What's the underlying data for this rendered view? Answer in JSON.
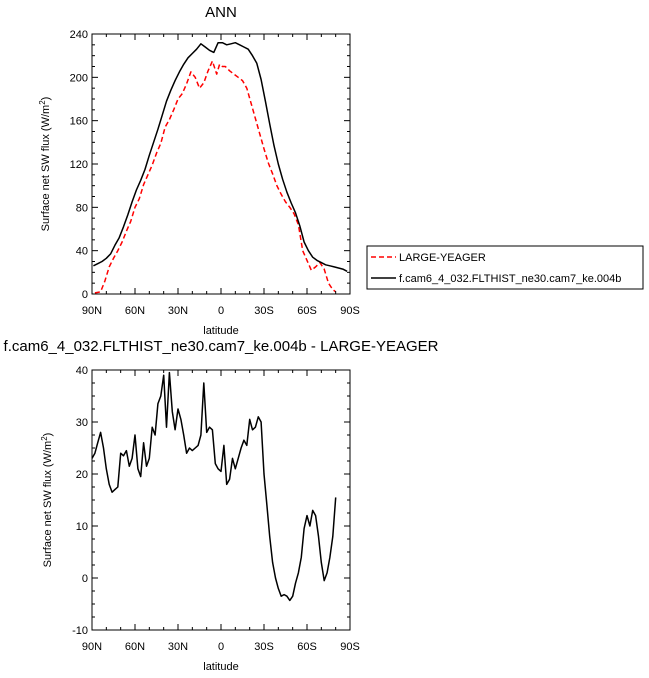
{
  "chart_data": [
    {
      "type": "line",
      "title": "ANN",
      "xlabel": "latitude",
      "ylabel": "Surface net SW flux (W/m²)",
      "ylabel_base": "Surface net SW flux (W/m",
      "ylabel_sup": "2",
      "ylabel_tail": ")",
      "xlim": [
        90,
        -90
      ],
      "ylim": [
        0,
        240
      ],
      "xticks": [
        90,
        60,
        30,
        0,
        -30,
        -60,
        -90
      ],
      "xtick_labels": [
        "90N",
        "60N",
        "30N",
        "0",
        "30S",
        "60S",
        "90S"
      ],
      "yticks": [
        0,
        40,
        80,
        120,
        160,
        200,
        240
      ],
      "ytick_labels": [
        "0",
        "40",
        "80",
        "120",
        "160",
        "200",
        "240"
      ],
      "legend_position": "outside-right",
      "series": [
        {
          "name": "LARGE-YEAGER",
          "color": "#ff0000",
          "dash": "dashed",
          "x": [
            88,
            84,
            81,
            78,
            75,
            72,
            69,
            66,
            63,
            60,
            57,
            54,
            51,
            48,
            45,
            42,
            39,
            36,
            33,
            30,
            27,
            24,
            21,
            18,
            15,
            12,
            9,
            6,
            3,
            1,
            -1,
            -3,
            -6,
            -9,
            -12,
            -15,
            -18,
            -21,
            -24,
            -27,
            -30,
            -33,
            -36,
            -39,
            -42,
            -45,
            -48,
            -51,
            -54,
            -57,
            -60,
            -63,
            -66,
            -69,
            -72,
            -75,
            -78,
            -80
          ],
          "y": [
            1,
            2,
            12,
            25,
            33,
            40,
            48,
            58,
            67,
            80,
            88,
            101,
            110,
            119,
            130,
            139,
            154,
            161,
            170,
            180,
            185,
            194,
            205,
            200,
            190,
            195,
            206,
            215,
            203,
            212,
            210,
            210,
            206,
            203,
            200,
            197,
            190,
            176,
            162,
            148,
            134,
            121,
            111,
            100,
            92,
            85,
            80,
            74,
            64,
            40,
            31,
            22,
            25,
            29,
            23,
            10,
            4,
            2
          ]
        },
        {
          "name": "f.cam6_4_032.FLTHIST_ne30.cam7_ke.004b",
          "color": "#000000",
          "dash": "solid",
          "x": [
            89,
            86,
            83,
            80,
            77,
            74,
            71,
            68,
            65,
            62,
            59,
            56,
            53,
            50,
            47,
            44,
            41,
            38,
            35,
            32,
            29,
            26,
            23,
            20,
            17,
            14,
            11,
            8,
            5,
            2,
            -1,
            -4,
            -7,
            -10,
            -13,
            -16,
            -19,
            -22,
            -25,
            -28,
            -31,
            -34,
            -37,
            -40,
            -43,
            -46,
            -49,
            -52,
            -55,
            -58,
            -61,
            -64,
            -67,
            -70,
            -73,
            -76,
            -79,
            -82,
            -85,
            -88
          ],
          "y": [
            26,
            28,
            30,
            33,
            37,
            45,
            52,
            62,
            73,
            85,
            96,
            105,
            115,
            128,
            140,
            152,
            165,
            178,
            188,
            197,
            205,
            212,
            218,
            222,
            226,
            231,
            228,
            225,
            223,
            232,
            232,
            230,
            231,
            232,
            230,
            228,
            226,
            220,
            213,
            198,
            178,
            157,
            137,
            120,
            106,
            94,
            84,
            75,
            63,
            48,
            40,
            34,
            31,
            29,
            27,
            26,
            25,
            24,
            23,
            21
          ]
        }
      ]
    },
    {
      "type": "line",
      "title": "f.cam6_4_032.FLTHIST_ne30.cam7_ke.004b - LARGE-YEAGER",
      "xlabel": "latitude",
      "ylabel": "Surface net SW flux (W/m²)",
      "ylabel_base": "Surface net SW flux (W/m",
      "ylabel_sup": "2",
      "ylabel_tail": ")",
      "xlim": [
        90,
        -90
      ],
      "ylim": [
        -10,
        40
      ],
      "xticks": [
        90,
        60,
        30,
        0,
        -30,
        -60,
        -90
      ],
      "xtick_labels": [
        "90N",
        "60N",
        "30N",
        "0",
        "30S",
        "60S",
        "90S"
      ],
      "yticks": [
        -10,
        0,
        10,
        20,
        30,
        40
      ],
      "ytick_labels": [
        "-10",
        "0",
        "10",
        "20",
        "30",
        "40"
      ],
      "series": [
        {
          "color": "#000000",
          "dash": "solid",
          "x": [
            90,
            88,
            86,
            84,
            82,
            80,
            78,
            76,
            74,
            72,
            70,
            68,
            66,
            64,
            62,
            60,
            58,
            56,
            54,
            52,
            50,
            48,
            46,
            44,
            42,
            40,
            38,
            36,
            34,
            32,
            30,
            28,
            26,
            24,
            22,
            20,
            18,
            16,
            14,
            12,
            10,
            8,
            6,
            4,
            2,
            0,
            -2,
            -4,
            -6,
            -8,
            -10,
            -12,
            -14,
            -16,
            -18,
            -20,
            -22,
            -24,
            -26,
            -28,
            -30,
            -32,
            -34,
            -36,
            -38,
            -40,
            -42,
            -44,
            -46,
            -48,
            -50,
            -52,
            -54,
            -56,
            -58,
            -60,
            -62,
            -64,
            -66,
            -68,
            -70,
            -72,
            -74,
            -76,
            -78,
            -80
          ],
          "y": [
            23,
            24,
            26,
            28,
            25,
            21,
            18,
            16.5,
            17,
            17.5,
            24,
            23.5,
            24.5,
            21.5,
            23,
            27.5,
            21,
            19.5,
            26,
            21.5,
            23,
            29,
            27.5,
            33.5,
            35,
            39,
            29,
            39.5,
            32,
            28.5,
            32.5,
            30.5,
            27.5,
            24,
            25,
            24.5,
            25,
            25.5,
            27.5,
            37.5,
            28,
            29,
            28.5,
            22,
            21,
            20.5,
            25.5,
            18,
            19,
            23,
            21,
            23,
            25,
            26.5,
            25.5,
            30.5,
            28.5,
            29,
            31,
            30,
            20,
            14,
            8,
            3,
            0,
            -2,
            -3.5,
            -3.2,
            -3.5,
            -4.3,
            -3.5,
            -1,
            1,
            4,
            9.5,
            12,
            10,
            13,
            12,
            8,
            3,
            -0.5,
            1,
            4,
            8,
            15.5
          ]
        }
      ]
    }
  ]
}
